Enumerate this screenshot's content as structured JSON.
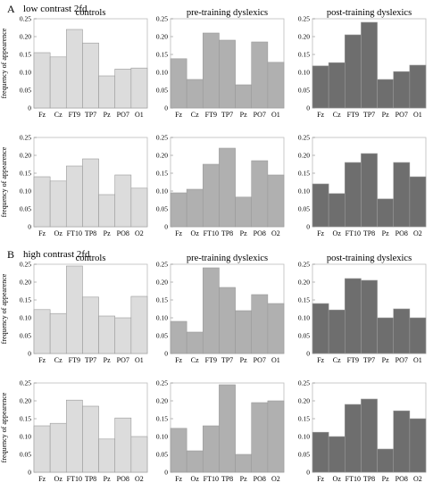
{
  "sections": [
    {
      "letter": "A",
      "title": "low contrast 2fd"
    },
    {
      "letter": "B",
      "title": "high  contrast 2fd"
    }
  ],
  "column_titles": [
    "controls",
    "pre-training dyslexics",
    "post-training dyslexics"
  ],
  "ylabel": "frequency of appearence",
  "colors": {
    "controls": "#dcdcdc",
    "pre": "#b0b0b0",
    "post": "#6e6e6e",
    "edge": "#9a9a9a"
  },
  "chart_data": [
    {
      "id": "A-controls-row1",
      "type": "bar",
      "title": "controls",
      "ylabel": "frequency of appearence",
      "ylim": [
        0,
        0.25
      ],
      "yticks": [
        "0",
        "0.05",
        "0.10",
        "0.15",
        "0.20",
        "0.25"
      ],
      "categories": [
        "Fz",
        "Cz",
        "FT9",
        "TP7",
        "Pz",
        "PO7",
        "O1"
      ],
      "values": [
        0.155,
        0.143,
        0.22,
        0.182,
        0.09,
        0.109,
        0.112
      ]
    },
    {
      "id": "A-pre-row1",
      "type": "bar",
      "title": "pre-training dyslexics",
      "ylabel": "",
      "ylim": [
        0,
        0.25
      ],
      "yticks": [
        "0",
        "0.05",
        "0.10",
        "0.15",
        "0.20",
        "0.25"
      ],
      "categories": [
        "Fz",
        "Cz",
        "FT9",
        "TP7",
        "Pz",
        "PO7",
        "O1"
      ],
      "values": [
        0.138,
        0.08,
        0.21,
        0.19,
        0.065,
        0.185,
        0.128
      ]
    },
    {
      "id": "A-post-row1",
      "type": "bar",
      "title": "post-training dyslexics",
      "ylabel": "",
      "ylim": [
        0,
        0.25
      ],
      "yticks": [
        "0",
        "0.05",
        "0.10",
        "0.15",
        "0.20",
        "0.25"
      ],
      "categories": [
        "Fz",
        "Cz",
        "FT9",
        "TP7",
        "Pz",
        "PO7",
        "O1"
      ],
      "values": [
        0.118,
        0.127,
        0.205,
        0.24,
        0.08,
        0.102,
        0.12
      ]
    },
    {
      "id": "A-controls-row2",
      "type": "bar",
      "title": "",
      "ylabel": "frequency of appearence",
      "ylim": [
        0,
        0.25
      ],
      "yticks": [
        "0",
        "0.05",
        "0.10",
        "0.15",
        "0.20",
        "0.25"
      ],
      "categories": [
        "Fz",
        "Oz",
        "FT10",
        "TP8",
        "Pz",
        "PO8",
        "O2"
      ],
      "values": [
        0.14,
        0.128,
        0.17,
        0.19,
        0.09,
        0.145,
        0.108
      ]
    },
    {
      "id": "A-pre-row2",
      "type": "bar",
      "title": "",
      "ylabel": "",
      "ylim": [
        0,
        0.25
      ],
      "yticks": [
        "0",
        "0.05",
        "0.10",
        "0.15",
        "0.20",
        "0.25"
      ],
      "categories": [
        "Fz",
        "Oz",
        "FT10",
        "TP8",
        "Pz",
        "PO8",
        "O2"
      ],
      "values": [
        0.095,
        0.105,
        0.175,
        0.22,
        0.083,
        0.185,
        0.145
      ]
    },
    {
      "id": "A-post-row2",
      "type": "bar",
      "title": "",
      "ylabel": "",
      "ylim": [
        0,
        0.25
      ],
      "yticks": [
        "0",
        "0.05",
        "0.10",
        "0.15",
        "0.20",
        "0.25"
      ],
      "categories": [
        "Fz",
        "Oz",
        "FT10",
        "TP8",
        "Pz",
        "PO8",
        "O2"
      ],
      "values": [
        0.12,
        0.093,
        0.18,
        0.205,
        0.078,
        0.18,
        0.14
      ]
    },
    {
      "id": "B-controls-row1",
      "type": "bar",
      "title": "controls",
      "ylabel": "frequency of appearence",
      "ylim": [
        0,
        0.25
      ],
      "yticks": [
        "0",
        "0.05",
        "0.10",
        "0.15",
        "0.20",
        "0.25"
      ],
      "categories": [
        "Fz",
        "Cz",
        "FT9",
        "TP7",
        "Pz",
        "PO7",
        "O1"
      ],
      "values": [
        0.123,
        0.112,
        0.245,
        0.158,
        0.105,
        0.1,
        0.16
      ]
    },
    {
      "id": "B-pre-row1",
      "type": "bar",
      "title": "pre-training dyslexics",
      "ylabel": "",
      "ylim": [
        0,
        0.25
      ],
      "yticks": [
        "0",
        "0.05",
        "0.10",
        "0.15",
        "0.20",
        "0.25"
      ],
      "categories": [
        "Fz",
        "Cz",
        "FT9",
        "TP7",
        "Pz",
        "PO7",
        "O1"
      ],
      "values": [
        0.09,
        0.06,
        0.24,
        0.185,
        0.12,
        0.165,
        0.14
      ]
    },
    {
      "id": "B-post-row1",
      "type": "bar",
      "title": "post-training dyslexics",
      "ylabel": "",
      "ylim": [
        0,
        0.25
      ],
      "yticks": [
        "0",
        "0.05",
        "0.10",
        "0.15",
        "0.20",
        "0.25"
      ],
      "categories": [
        "Fz",
        "Cz",
        "FT9",
        "TP7",
        "Pz",
        "PO7",
        "O1"
      ],
      "values": [
        0.14,
        0.122,
        0.21,
        0.205,
        0.1,
        0.125,
        0.1
      ]
    },
    {
      "id": "B-controls-row2",
      "type": "bar",
      "title": "",
      "ylabel": "frequency of appearence",
      "ylim": [
        0,
        0.25
      ],
      "yticks": [
        "0",
        "0.05",
        "0.10",
        "0.15",
        "0.20",
        "0.25"
      ],
      "categories": [
        "Fz",
        "Oz",
        "FT10",
        "TP8",
        "Pz",
        "PO8",
        "O2"
      ],
      "values": [
        0.13,
        0.137,
        0.202,
        0.185,
        0.093,
        0.152,
        0.1
      ]
    },
    {
      "id": "B-pre-row2",
      "type": "bar",
      "title": "",
      "ylabel": "",
      "ylim": [
        0,
        0.25
      ],
      "yticks": [
        "0",
        "0.05",
        "0.10",
        "0.15",
        "0.20",
        "0.25"
      ],
      "categories": [
        "Fz",
        "Oz",
        "FT10",
        "TP8",
        "Pz",
        "PO8",
        "O2"
      ],
      "values": [
        0.123,
        0.06,
        0.13,
        0.245,
        0.05,
        0.195,
        0.2
      ]
    },
    {
      "id": "B-post-row2",
      "type": "bar",
      "title": "",
      "ylabel": "",
      "ylim": [
        0,
        0.25
      ],
      "yticks": [
        "0",
        "0.05",
        "0.10",
        "0.15",
        "0.20",
        "0.25"
      ],
      "categories": [
        "Fz",
        "Oz",
        "FT10",
        "TP8",
        "Pz",
        "PO8",
        "O2"
      ],
      "values": [
        0.112,
        0.1,
        0.19,
        0.205,
        0.065,
        0.172,
        0.15
      ]
    }
  ]
}
